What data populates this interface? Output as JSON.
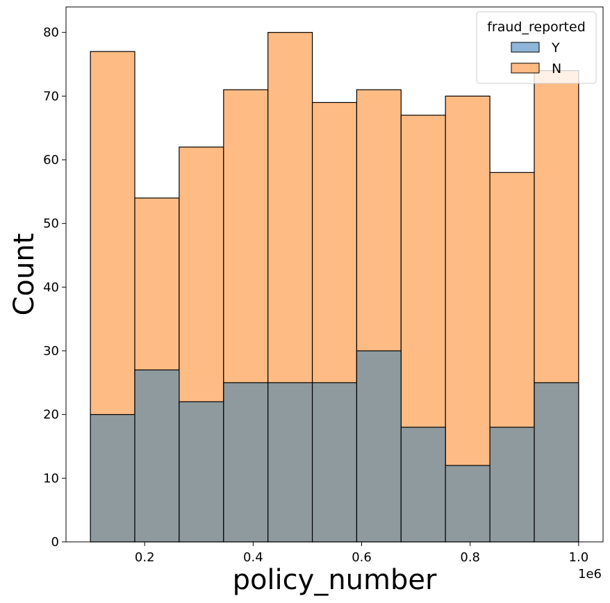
{
  "chart_data": {
    "type": "bar",
    "stacked_overlay": true,
    "xlabel": "policy_number",
    "ylabel": "Count",
    "x_offset_label": "1e6",
    "xlim": [
      0.055,
      1.045
    ],
    "ylim": [
      0,
      84
    ],
    "xticks": [
      0.2,
      0.4,
      0.6,
      0.8,
      1.0
    ],
    "xtick_labels": [
      "0.2",
      "0.4",
      "0.6",
      "0.8",
      "1.0"
    ],
    "yticks": [
      0,
      10,
      20,
      30,
      40,
      50,
      60,
      70,
      80
    ],
    "ytick_labels": [
      "0",
      "10",
      "20",
      "30",
      "40",
      "50",
      "60",
      "70",
      "80"
    ],
    "bin_edges": [
      0.1,
      0.1818,
      0.2636,
      0.3455,
      0.4273,
      0.5091,
      0.5909,
      0.6727,
      0.7545,
      0.8364,
      0.9182,
      1.0
    ],
    "series": [
      {
        "name": "Y",
        "color": "#1f77b4",
        "values": [
          20,
          27,
          22,
          25,
          25,
          25,
          30,
          18,
          12,
          18,
          25
        ]
      },
      {
        "name": "N",
        "color": "#ff7f0e",
        "values": [
          77,
          54,
          62,
          71,
          80,
          69,
          71,
          67,
          70,
          58,
          74
        ]
      }
    ],
    "overlap_color": "#8e9a9e",
    "legend": {
      "title": "fraud_reported",
      "placement": "top-right",
      "entries": [
        "Y",
        "N"
      ]
    },
    "grid": false
  }
}
